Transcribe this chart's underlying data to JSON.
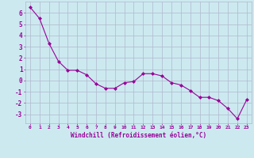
{
  "x": [
    0,
    1,
    2,
    3,
    4,
    5,
    6,
    7,
    8,
    9,
    10,
    11,
    12,
    13,
    14,
    15,
    16,
    17,
    18,
    19,
    20,
    21,
    22,
    23
  ],
  "y": [
    6.5,
    5.5,
    3.3,
    1.7,
    0.9,
    0.9,
    0.5,
    -0.3,
    -0.7,
    -0.7,
    -0.2,
    -0.1,
    0.6,
    0.6,
    0.4,
    -0.2,
    -0.4,
    -0.9,
    -1.5,
    -1.5,
    -1.8,
    -2.5,
    -3.4,
    -1.7
  ],
  "line_color": "#990099",
  "marker": "D",
  "marker_size": 2,
  "bg_color": "#cce9f0",
  "grid_color": "#b0b8cc",
  "ylabel_ticks": [
    6,
    5,
    4,
    3,
    2,
    1,
    0,
    -1,
    -2,
    -3
  ],
  "ylim": [
    -3.8,
    7.0
  ],
  "xlim": [
    -0.5,
    23.5
  ],
  "xlabel": "Windchill (Refroidissement éolien,°C)",
  "xlabel_color": "#990099",
  "tick_color": "#990099",
  "font": "monospace"
}
